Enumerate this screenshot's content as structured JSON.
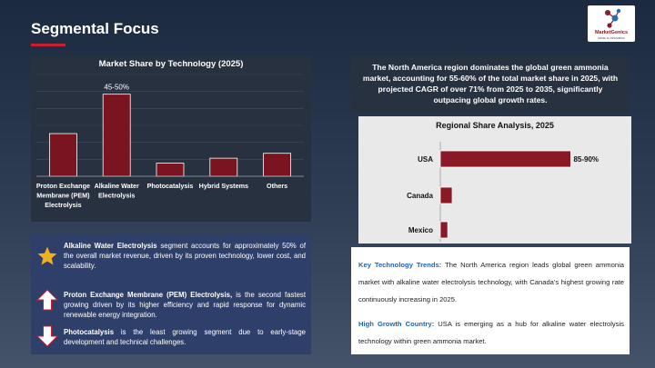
{
  "slide": {
    "title": "Segmental Focus",
    "logo": {
      "name": "MarketGenics",
      "tagline": "Ideas to Innovation"
    }
  },
  "chart_data": [
    {
      "type": "bar",
      "title": "Market Share by Technology (2025)",
      "categories": [
        "Proton Exchange Membrane (PEM) Electrolysis",
        "Alkaline Water Electrolysis",
        "Photocatalysis",
        "Hybrid Systems",
        "Others"
      ],
      "category_lines": [
        [
          "Proton Exchange",
          "Membrane (PEM)",
          "Electrolysis"
        ],
        [
          "Alkaline Water",
          "Electrolysis"
        ],
        [
          "Photocatalysis"
        ],
        [
          "Hybrid Systems"
        ],
        [
          "Others"
        ]
      ],
      "values": [
        26,
        50,
        8,
        11,
        14
      ],
      "data_labels": [
        "",
        "45-50%",
        "",
        "",
        ""
      ],
      "ylim": [
        0,
        62
      ],
      "grid": true,
      "color": "#7a1421"
    },
    {
      "type": "bar",
      "orientation": "horizontal",
      "title": "Regional Share Analysis, 2025",
      "categories": [
        "USA",
        "Canada",
        "Mexico"
      ],
      "values": [
        88,
        8,
        5
      ],
      "data_labels": [
        "85-90%",
        "",
        ""
      ],
      "xlim": [
        0,
        100
      ],
      "grid": false,
      "color": "#8b1826"
    }
  ],
  "headline": "The North America region dominates the global green ammonia market, accounting for 55-60% of the total market share in 2025, with projected CAGR of over 71% from 2025 to 2035, significantly outpacing global growth rates.",
  "bullets": [
    {
      "icon": "star-icon",
      "bold": "Alkaline Water Electrolysis",
      "text": " segment accounts for approximately 50% of the overall market revenue, driven by its proven technology, lower cost, and scalability."
    },
    {
      "icon": "arrow-up-icon",
      "bold": "Proton Exchange Membrane (PEM) Electrolysis,",
      "text": " is the second fastest growing driven by its higher efficiency and rapid response for dynamic renewable energy integration."
    },
    {
      "icon": "arrow-down-icon",
      "bold": "Photocatalysis",
      "text": " is the least growing segment due to early-stage development and technical challenges."
    }
  ],
  "notes": [
    {
      "key": "Key Technology Trends:",
      "text": " The North America region leads global green ammonia market with alkaline water electrolysis technology, with Canada's highest growing rate continuously increasing in 2025."
    },
    {
      "key": "High Growth Country:",
      "text": " USA is emerging as a hub for alkaline water electrolysis technology within green ammonia market."
    }
  ],
  "colors": {
    "accent": "#c8202f",
    "bar": "#7a1421",
    "bullet_panel": "#2e3f6a",
    "note_key": "#1f63b4",
    "star": "#f2b01e"
  }
}
